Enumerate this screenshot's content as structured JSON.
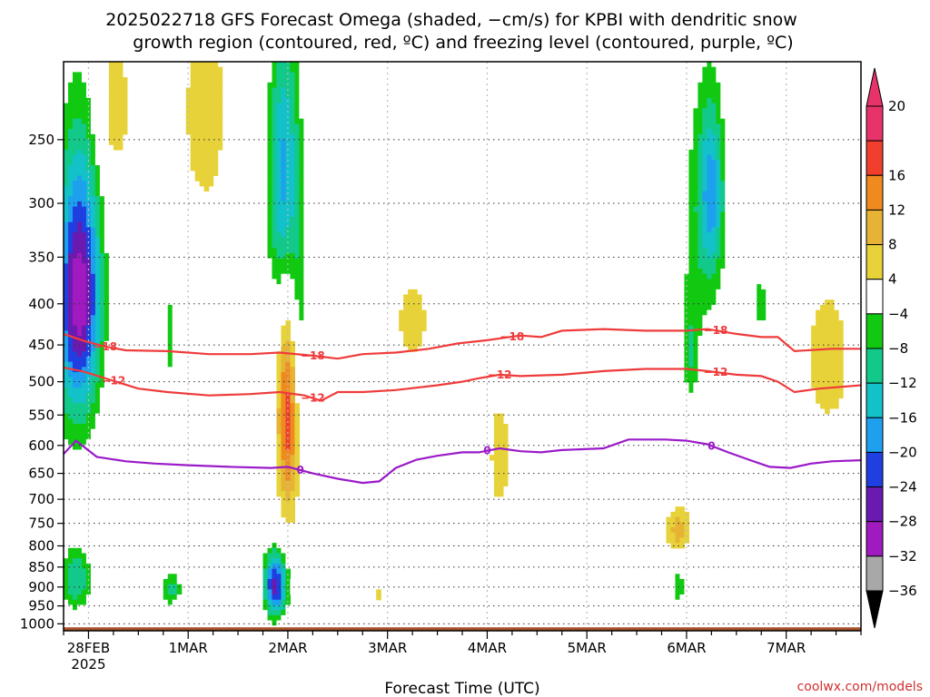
{
  "chart_data": {
    "type": "heatmap",
    "title_line1": "2025022718 GFS Forecast Omega (shaded, −cm/s) for KPBI with dendritic snow",
    "title_line2": "growth region (contoured, red, ºC) and freezing level (contoured, purple, ºC)",
    "xlabel": "Forecast Time (UTC)",
    "credit": "coolwx.com/models",
    "y_axis": {
      "type": "log-pressure",
      "range_hPa": [
        1020,
        200
      ],
      "ticks": [
        250,
        300,
        350,
        400,
        450,
        500,
        550,
        600,
        650,
        700,
        750,
        800,
        850,
        900,
        950,
        1000
      ]
    },
    "x_axis": {
      "range_hours": [
        0,
        192
      ],
      "ticks": [
        {
          "hour": 6,
          "label": "28FEB",
          "sublabel": "2025"
        },
        {
          "hour": 30,
          "label": "1MAR",
          "sublabel": ""
        },
        {
          "hour": 54,
          "label": "2MAR",
          "sublabel": ""
        },
        {
          "hour": 78,
          "label": "3MAR",
          "sublabel": ""
        },
        {
          "hour": 102,
          "label": "4MAR",
          "sublabel": ""
        },
        {
          "hour": 126,
          "label": "5MAR",
          "sublabel": ""
        },
        {
          "hour": 150,
          "label": "6MAR",
          "sublabel": ""
        },
        {
          "hour": 174,
          "label": "7MAR",
          "sublabel": ""
        }
      ],
      "grid_dashed_every_hours": 24
    },
    "colorbar": {
      "labels": [
        "20",
        "16",
        "12",
        "8",
        "4",
        "−4",
        "−8",
        "−12",
        "−16",
        "−20",
        "−24",
        "−28",
        "−32",
        "−36"
      ],
      "levels": [
        20,
        16,
        12,
        8,
        4,
        -4,
        -8,
        -12,
        -16,
        -20,
        -24,
        -28,
        -32,
        -36
      ],
      "colors": [
        "#e8336a",
        "#f0402d",
        "#ef8a1f",
        "#e6b334",
        "#e8d23a",
        "#ffffff",
        "#12c912",
        "#12c98a",
        "#12c2c8",
        "#1da0ee",
        "#1f3fe0",
        "#6a1ab0",
        "#a01ac0",
        "#a8a8a8"
      ],
      "top_extend_color": "#e8336a",
      "bottom_extend_color": "#000000"
    },
    "contours": [
      {
        "name": "freezing level",
        "color": "#9a1ac8",
        "label": "0",
        "points": [
          [
            0,
            615
          ],
          [
            3,
            592
          ],
          [
            8,
            620
          ],
          [
            15,
            628
          ],
          [
            22,
            632
          ],
          [
            30,
            635
          ],
          [
            40,
            638
          ],
          [
            50,
            640
          ],
          [
            54,
            638
          ],
          [
            60,
            650
          ],
          [
            66,
            660
          ],
          [
            72,
            668
          ],
          [
            76,
            665
          ],
          [
            80,
            640
          ],
          [
            85,
            625
          ],
          [
            90,
            618
          ],
          [
            96,
            612
          ],
          [
            100,
            612
          ],
          [
            105,
            605
          ],
          [
            110,
            610
          ],
          [
            115,
            612
          ],
          [
            120,
            608
          ],
          [
            130,
            605
          ],
          [
            136,
            590
          ],
          [
            145,
            590
          ],
          [
            150,
            592
          ],
          [
            155,
            598
          ],
          [
            160,
            612
          ],
          [
            165,
            625
          ],
          [
            170,
            638
          ],
          [
            175,
            640
          ],
          [
            180,
            632
          ],
          [
            185,
            628
          ],
          [
            192,
            626
          ]
        ],
        "label_hours": [
          57,
          102,
          156
        ]
      },
      {
        "name": "dgz -12",
        "color": "#ef3b3b",
        "label": "−12",
        "points": [
          [
            0,
            480
          ],
          [
            5,
            486
          ],
          [
            10,
            495
          ],
          [
            18,
            510
          ],
          [
            25,
            515
          ],
          [
            35,
            520
          ],
          [
            45,
            518
          ],
          [
            52,
            515
          ],
          [
            58,
            520
          ],
          [
            62,
            528
          ],
          [
            66,
            515
          ],
          [
            72,
            515
          ],
          [
            80,
            512
          ],
          [
            90,
            505
          ],
          [
            96,
            500
          ],
          [
            100,
            495
          ],
          [
            105,
            490
          ],
          [
            110,
            492
          ],
          [
            120,
            490
          ],
          [
            130,
            485
          ],
          [
            140,
            482
          ],
          [
            150,
            482
          ],
          [
            155,
            485
          ],
          [
            162,
            490
          ],
          [
            168,
            492
          ],
          [
            172,
            500
          ],
          [
            176,
            515
          ],
          [
            182,
            510
          ],
          [
            192,
            505
          ]
        ],
        "label_hours": [
          12,
          60,
          105,
          157
        ]
      },
      {
        "name": "dgz -18",
        "color": "#ef3b3b",
        "label": "−18",
        "points": [
          [
            0,
            436
          ],
          [
            5,
            445
          ],
          [
            10,
            452
          ],
          [
            15,
            457
          ],
          [
            25,
            458
          ],
          [
            35,
            462
          ],
          [
            45,
            462
          ],
          [
            52,
            460
          ],
          [
            60,
            464
          ],
          [
            66,
            468
          ],
          [
            72,
            462
          ],
          [
            80,
            460
          ],
          [
            88,
            455
          ],
          [
            95,
            448
          ],
          [
            102,
            444
          ],
          [
            110,
            438
          ],
          [
            115,
            440
          ],
          [
            120,
            432
          ],
          [
            130,
            430
          ],
          [
            140,
            432
          ],
          [
            150,
            432
          ],
          [
            155,
            430
          ],
          [
            162,
            436
          ],
          [
            168,
            440
          ],
          [
            172,
            440
          ],
          [
            176,
            458
          ],
          [
            185,
            455
          ],
          [
            192,
            455
          ]
        ],
        "label_hours": [
          10,
          60,
          108,
          157
        ]
      }
    ],
    "omega_features": [
      {
        "kind": "ellipse",
        "h": 4,
        "p": 380,
        "rh": 5.0,
        "rp": 130,
        "value": -22
      },
      {
        "kind": "ellipse",
        "h": 3,
        "p": 430,
        "rh": 7.0,
        "rp": 210,
        "value": -14
      },
      {
        "kind": "ellipse",
        "h": 3,
        "p": 880,
        "rh": 4.0,
        "rp": 90,
        "value": -16
      },
      {
        "kind": "ellipse",
        "h": 26,
        "p": 905,
        "rh": 2.5,
        "rp": 50,
        "value": -14
      },
      {
        "kind": "ellipse",
        "h": 26,
        "p": 440,
        "rh": 1.5,
        "rp": 160,
        "value": -9
      },
      {
        "kind": "ellipse",
        "h": 51,
        "p": 895,
        "rh": 3.0,
        "rp": 90,
        "value": -30
      },
      {
        "kind": "ellipse",
        "h": 53,
        "p": 280,
        "rh": 4.0,
        "rp": 120,
        "value": -22
      },
      {
        "kind": "ellipse",
        "h": 54,
        "p": 520,
        "rh": 2.5,
        "rp": 190,
        "value": 22
      },
      {
        "kind": "ellipse",
        "h": 56,
        "p": 420,
        "rh": 4.0,
        "rp": 160,
        "value": -10
      },
      {
        "kind": "ellipse",
        "h": 12,
        "p": 230,
        "rh": 4.0,
        "rp": 50,
        "value": 8
      },
      {
        "kind": "ellipse",
        "h": 34,
        "p": 230,
        "rh": 5.0,
        "rp": 70,
        "value": 8
      },
      {
        "kind": "ellipse",
        "h": 84,
        "p": 420,
        "rh": 6.0,
        "rp": 80,
        "value": 5
      },
      {
        "kind": "ellipse",
        "h": 148,
        "p": 765,
        "rh": 3.0,
        "rp": 50,
        "value": 10
      },
      {
        "kind": "ellipse",
        "h": 154,
        "p": 320,
        "rh": 7.0,
        "rp": 160,
        "value": -10
      },
      {
        "kind": "ellipse",
        "h": 156,
        "p": 290,
        "rh": 3.0,
        "rp": 70,
        "value": -14
      },
      {
        "kind": "ellipse",
        "h": 148,
        "p": 900,
        "rh": 2.0,
        "rp": 50,
        "value": -12
      },
      {
        "kind": "ellipse",
        "h": 151,
        "p": 470,
        "rh": 2.0,
        "rp": 80,
        "value": -9
      },
      {
        "kind": "ellipse",
        "h": 184,
        "p": 470,
        "rh": 5.0,
        "rp": 90,
        "value": 8
      },
      {
        "kind": "ellipse",
        "h": 168,
        "p": 400,
        "rh": 3.0,
        "rp": 60,
        "value": -9
      },
      {
        "kind": "ellipse",
        "h": 105,
        "p": 620,
        "rh": 3.0,
        "rp": 120,
        "value": 6
      },
      {
        "kind": "ellipse",
        "h": 76,
        "p": 920,
        "rh": 1.5,
        "rp": 30,
        "value": 5
      }
    ],
    "ground_color": "#a9522a"
  }
}
